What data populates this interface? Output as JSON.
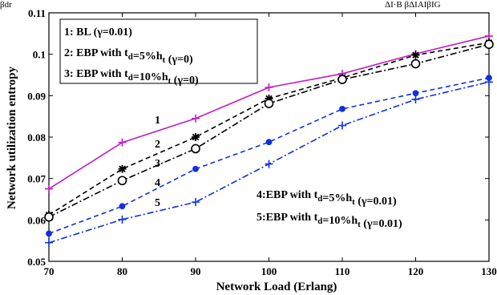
{
  "chart_data": {
    "type": "line",
    "xlabel": "Network Load (Erlang)",
    "ylabel": "Network utilization entropy",
    "xlim": [
      70,
      130
    ],
    "ylim": [
      0.05,
      0.11
    ],
    "x_ticks": [
      "70",
      "80",
      "90",
      "100",
      "110",
      "120",
      "130"
    ],
    "y_ticks": [
      "0.05",
      "0.06",
      "0.07",
      "0.08",
      "0.09",
      "0.1",
      "0.11"
    ],
    "grid": false,
    "x": [
      70,
      80,
      90,
      100,
      110,
      120,
      130
    ],
    "series": [
      {
        "name": "1: BL (γ=0.01)",
        "label": "1",
        "color": "#c21bc2",
        "dash": "solid",
        "marker": "plus",
        "values": [
          0.0675,
          0.0787,
          0.0845,
          0.092,
          0.0953,
          0.1001,
          0.1044
        ]
      },
      {
        "name": "2: EBP with t_d=5%h_t (γ=0)",
        "label": "2",
        "color": "#000000",
        "dash": "dashed",
        "marker": "asterisk",
        "values": [
          0.0612,
          0.0723,
          0.08,
          0.0893,
          0.0943,
          0.0998,
          0.1028
        ]
      },
      {
        "name": "3: EBP with t_d=10%h_t (γ=0)",
        "label": "3",
        "color": "#000000",
        "dash": "dashdot",
        "marker": "circle",
        "values": [
          0.0607,
          0.0695,
          0.0772,
          0.0881,
          0.0939,
          0.0977,
          0.1024
        ]
      },
      {
        "name": "4:EBP with t_d=5%h_t (γ=0.01)",
        "label": "4",
        "color": "#1030e0",
        "dash": "dashed",
        "marker": "dot",
        "values": [
          0.0567,
          0.0633,
          0.0723,
          0.0788,
          0.0868,
          0.0906,
          0.0943
        ]
      },
      {
        "name": "5:EBP with t_d=10%h_t (γ=0.01)",
        "label": "5",
        "color": "#1030e0",
        "dash": "dashdot",
        "marker": "plus",
        "values": [
          0.0545,
          0.0601,
          0.0643,
          0.0735,
          0.0828,
          0.0891,
          0.0933
        ]
      }
    ],
    "annotations": {
      "box_lines": [
        {
          "pre": "1: BL (γ=0.01)"
        },
        {
          "pre": "2: EBP with t",
          "sub1": "d",
          "mid": "=5%h",
          "sub2": "t",
          "post": " (γ=0)"
        },
        {
          "pre": "3: EBP with t",
          "sub1": "d",
          "mid": "=10%h",
          "sub2": "t",
          "post": " (γ=0)"
        }
      ],
      "right_lines": [
        {
          "pre": "4:EBP with t",
          "sub1": "d",
          "mid": "=5%h",
          "sub2": "t",
          "post": " (γ=0.01)"
        },
        {
          "pre": "5:EBP with t",
          "sub1": "d",
          "mid": "=10%h",
          "sub2": "t",
          "post": " (γ=0.01)"
        }
      ]
    },
    "crop_text": {
      "top_left": "βdr",
      "top_right": "ΔI·B βΔIAIβIG"
    }
  }
}
